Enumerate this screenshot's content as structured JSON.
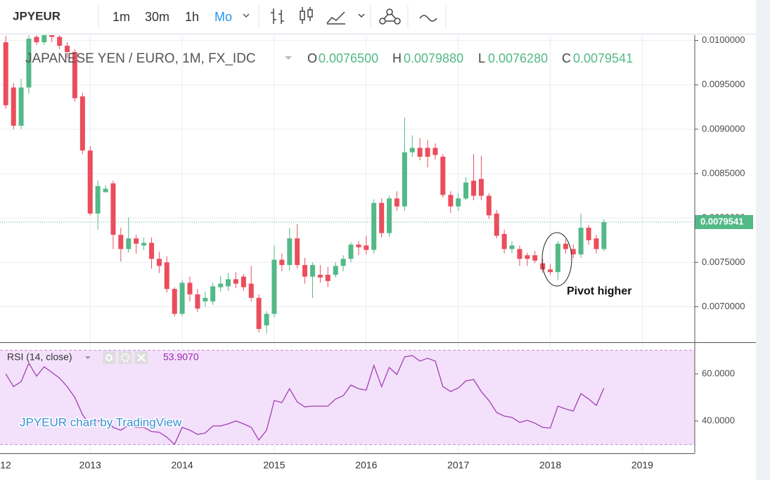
{
  "toolbar": {
    "symbol": "JPYEUR",
    "intervals": [
      "1m",
      "30m",
      "1h",
      "Mo"
    ]
  },
  "chart_data": [
    {
      "type": "candlestick",
      "title": "JAPANESE YEN / EURO, 1M, FX_IDC",
      "ohlc_legend": [
        {
          "key": "O",
          "label": "0.0076500"
        },
        {
          "key": "H",
          "label": "0.0079880"
        },
        {
          "key": "L",
          "label": "0.0076280"
        },
        {
          "key": "C",
          "label": "0.0079541"
        }
      ],
      "annotation": "Pivot higher",
      "watermark": "JPYEUR chart by TradingView",
      "up_color": "#53b987",
      "down_color": "#eb4d5c",
      "grid": true,
      "x": [
        2012.083,
        2012.167,
        2012.25,
        2012.333,
        2012.417,
        2012.5,
        2012.583,
        2012.667,
        2012.75,
        2012.833,
        2012.917,
        2013,
        2013.083,
        2013.167,
        2013.25,
        2013.333,
        2013.417,
        2013.5,
        2013.583,
        2013.667,
        2013.75,
        2013.833,
        2013.917,
        2014,
        2014.083,
        2014.167,
        2014.25,
        2014.333,
        2014.417,
        2014.5,
        2014.583,
        2014.667,
        2014.75,
        2014.833,
        2014.917,
        2015,
        2015.083,
        2015.167,
        2015.25,
        2015.333,
        2015.417,
        2015.5,
        2015.583,
        2015.667,
        2015.75,
        2015.833,
        2015.917,
        2016,
        2016.083,
        2016.167,
        2016.25,
        2016.333,
        2016.417,
        2016.5,
        2016.583,
        2016.667,
        2016.75,
        2016.833,
        2016.917,
        2017,
        2017.083,
        2017.167,
        2017.25,
        2017.333,
        2017.417,
        2017.5,
        2017.583,
        2017.667,
        2017.75,
        2017.833,
        2017.917,
        2018,
        2018.083,
        2018.167,
        2018.25,
        2018.333,
        2018.417,
        2018.5,
        2018.583
      ],
      "open": [
        0.00998,
        0.00947,
        0.00904,
        0.00947,
        0.01004,
        0.00998,
        0.01008,
        0.01004,
        0.00994,
        0.00987,
        0.00937,
        0.00876,
        0.00805,
        0.00829,
        0.00839,
        0.00781,
        0.00765,
        0.00777,
        0.00769,
        0.00772,
        0.00754,
        0.0075,
        0.0072,
        0.00692,
        0.00727,
        0.00714,
        0.00706,
        0.00706,
        0.00722,
        0.00723,
        0.00731,
        0.00734,
        0.00726,
        0.0071,
        0.00679,
        0.00692,
        0.00753,
        0.00747,
        0.00777,
        0.00747,
        0.00734,
        0.00736,
        0.00736,
        0.00736,
        0.00746,
        0.00754,
        0.0077,
        0.00769,
        0.00764,
        0.00817,
        0.00783,
        0.00822,
        0.00813,
        0.00874,
        0.00879,
        0.00879,
        0.00879,
        0.00869,
        0.00826,
        0.00813,
        0.00822,
        0.00842,
        0.00844,
        0.00825,
        0.00805,
        0.00782,
        0.00765,
        0.00765,
        0.00758,
        0.00758,
        0.00749,
        0.00742,
        0.00739,
        0.00771,
        0.00765,
        0.00759,
        0.00789,
        0.00777,
        0.00765
      ],
      "high": [
        0.01005,
        0.00952,
        0.00957,
        0.01006,
        0.0101,
        0.01012,
        0.01012,
        0.01008,
        0.00998,
        0.0099,
        0.00941,
        0.00881,
        0.00842,
        0.00837,
        0.00842,
        0.00789,
        0.00801,
        0.00781,
        0.00778,
        0.00778,
        0.00762,
        0.00757,
        0.00722,
        0.0073,
        0.00734,
        0.0072,
        0.00717,
        0.00727,
        0.00735,
        0.00738,
        0.00739,
        0.00737,
        0.00746,
        0.00714,
        0.00695,
        0.00769,
        0.0076,
        0.00789,
        0.00793,
        0.00755,
        0.0075,
        0.00747,
        0.00745,
        0.0075,
        0.00758,
        0.00773,
        0.00774,
        0.0078,
        0.00821,
        0.00822,
        0.00825,
        0.0083,
        0.00913,
        0.00893,
        0.0089,
        0.00888,
        0.00884,
        0.00872,
        0.0083,
        0.00828,
        0.00846,
        0.00872,
        0.0087,
        0.00828,
        0.00809,
        0.00787,
        0.00774,
        0.00769,
        0.00761,
        0.00763,
        0.00754,
        0.00748,
        0.00774,
        0.00776,
        0.0077,
        0.00805,
        0.00792,
        0.00781,
        0.007988
      ],
      "low": [
        0.00923,
        0.009,
        0.009,
        0.0094,
        0.00995,
        0.00995,
        0.00998,
        0.0099,
        0.0098,
        0.00931,
        0.00872,
        0.00803,
        0.00787,
        0.00829,
        0.00765,
        0.00751,
        0.00761,
        0.0076,
        0.00764,
        0.00743,
        0.00738,
        0.00716,
        0.00689,
        0.00689,
        0.00706,
        0.00694,
        0.007,
        0.00702,
        0.00717,
        0.00718,
        0.00721,
        0.00718,
        0.00706,
        0.00671,
        0.0067,
        0.00688,
        0.0074,
        0.00741,
        0.00743,
        0.00726,
        0.0071,
        0.00727,
        0.00722,
        0.00733,
        0.0074,
        0.0075,
        0.00758,
        0.00759,
        0.0076,
        0.00778,
        0.00779,
        0.00808,
        0.00808,
        0.00869,
        0.00865,
        0.00857,
        0.00866,
        0.00823,
        0.00806,
        0.00808,
        0.0082,
        0.0082,
        0.0082,
        0.00799,
        0.00777,
        0.0076,
        0.0076,
        0.00746,
        0.00746,
        0.00749,
        0.00738,
        0.00736,
        0.0073,
        0.0076,
        0.00755,
        0.00755,
        0.0077,
        0.0076,
        0.007628
      ],
      "close": [
        0.00927,
        0.00904,
        0.00947,
        0.01002,
        0.00998,
        0.01006,
        0.01004,
        0.00994,
        0.00987,
        0.00935,
        0.00876,
        0.00805,
        0.00836,
        0.00833,
        0.00781,
        0.00765,
        0.00777,
        0.00771,
        0.00772,
        0.00754,
        0.00746,
        0.0072,
        0.00692,
        0.00727,
        0.00714,
        0.00698,
        0.0071,
        0.00723,
        0.00726,
        0.00731,
        0.00726,
        0.00722,
        0.0071,
        0.00675,
        0.00692,
        0.00753,
        0.00747,
        0.00777,
        0.00747,
        0.00734,
        0.00747,
        0.00733,
        0.00729,
        0.00746,
        0.00754,
        0.0077,
        0.00767,
        0.00764,
        0.00817,
        0.00783,
        0.00822,
        0.00813,
        0.00874,
        0.00879,
        0.00869,
        0.00869,
        0.00871,
        0.00826,
        0.00813,
        0.00822,
        0.0084,
        0.00825,
        0.00825,
        0.00803,
        0.0078,
        0.00765,
        0.00769,
        0.00754,
        0.00754,
        0.00752,
        0.00742,
        0.00739,
        0.00771,
        0.00765,
        0.00759,
        0.00789,
        0.00775,
        0.00765,
        0.0079541
      ],
      "xlim": [
        2012.02,
        2019.57
      ],
      "xticks": [
        {
          "value": 2012,
          "label": "12"
        },
        2013,
        2014,
        2015,
        2016,
        2017,
        2018,
        2019
      ],
      "ylim": [
        0.0066,
        0.01006
      ],
      "yticks": [
        {
          "value": 0.007,
          "label": "0.0070000"
        },
        {
          "value": 0.0075,
          "label": "0.0075000"
        },
        {
          "value": 0.008,
          "label": "0.0080000"
        },
        {
          "value": 0.0085,
          "label": "0.0085000"
        },
        {
          "value": 0.009,
          "label": "0.0090000"
        },
        {
          "value": 0.0095,
          "label": "0.0095000"
        },
        {
          "value": 0.01,
          "label": "0.0100000"
        }
      ]
    },
    {
      "type": "line",
      "name": "RSI (14, close)",
      "last_value_label": "53.9070",
      "color": "#a33fb3",
      "band": [
        30,
        70
      ],
      "grid": true,
      "x": [
        2012.083,
        2012.167,
        2012.25,
        2012.333,
        2012.417,
        2012.5,
        2012.583,
        2012.667,
        2012.75,
        2012.833,
        2012.917,
        2013,
        2013.083,
        2013.167,
        2013.25,
        2013.333,
        2013.417,
        2013.5,
        2013.583,
        2013.667,
        2013.75,
        2013.833,
        2013.917,
        2014,
        2014.083,
        2014.167,
        2014.25,
        2014.333,
        2014.417,
        2014.5,
        2014.583,
        2014.667,
        2014.75,
        2014.833,
        2014.917,
        2015,
        2015.083,
        2015.167,
        2015.25,
        2015.333,
        2015.417,
        2015.5,
        2015.583,
        2015.667,
        2015.75,
        2015.833,
        2015.917,
        2016,
        2016.083,
        2016.167,
        2016.25,
        2016.333,
        2016.417,
        2016.5,
        2016.583,
        2016.667,
        2016.75,
        2016.833,
        2016.917,
        2017,
        2017.083,
        2017.167,
        2017.25,
        2017.333,
        2017.417,
        2017.5,
        2017.583,
        2017.667,
        2017.75,
        2017.833,
        2017.917,
        2018,
        2018.083,
        2018.167,
        2018.25,
        2018.333,
        2018.417,
        2018.5,
        2018.583
      ],
      "values": [
        60,
        54.6,
        56.7,
        64.5,
        59,
        63,
        60.6,
        58.2,
        54.6,
        50,
        42.7,
        38.2,
        40,
        40.5,
        37.3,
        36.1,
        38.2,
        37.3,
        37.3,
        35.5,
        35.2,
        33.1,
        30.1,
        37.3,
        36.1,
        34.3,
        34.9,
        37.9,
        37.9,
        38.8,
        40,
        38.8,
        37.3,
        31.9,
        36.1,
        48.7,
        47.8,
        53.7,
        48.1,
        46,
        46.3,
        46.3,
        46.3,
        49.3,
        50.7,
        55.2,
        53.7,
        53.1,
        63.6,
        54.6,
        62.7,
        59.7,
        67.2,
        67.8,
        65.4,
        66.6,
        65.4,
        54.6,
        52.5,
        54,
        57,
        57.6,
        52.5,
        48.7,
        43.6,
        42.1,
        41.5,
        39.4,
        40.3,
        39.1,
        37.3,
        37,
        46.3,
        45.1,
        44.2,
        51.6,
        49.3,
        46.6,
        53.907
      ],
      "xlim": [
        2012.02,
        2019.57
      ],
      "ylim": [
        26.3,
        72.8
      ],
      "yticks": [
        {
          "value": 40,
          "label": "40.0000"
        },
        {
          "value": 60,
          "label": "60.0000"
        }
      ]
    }
  ]
}
